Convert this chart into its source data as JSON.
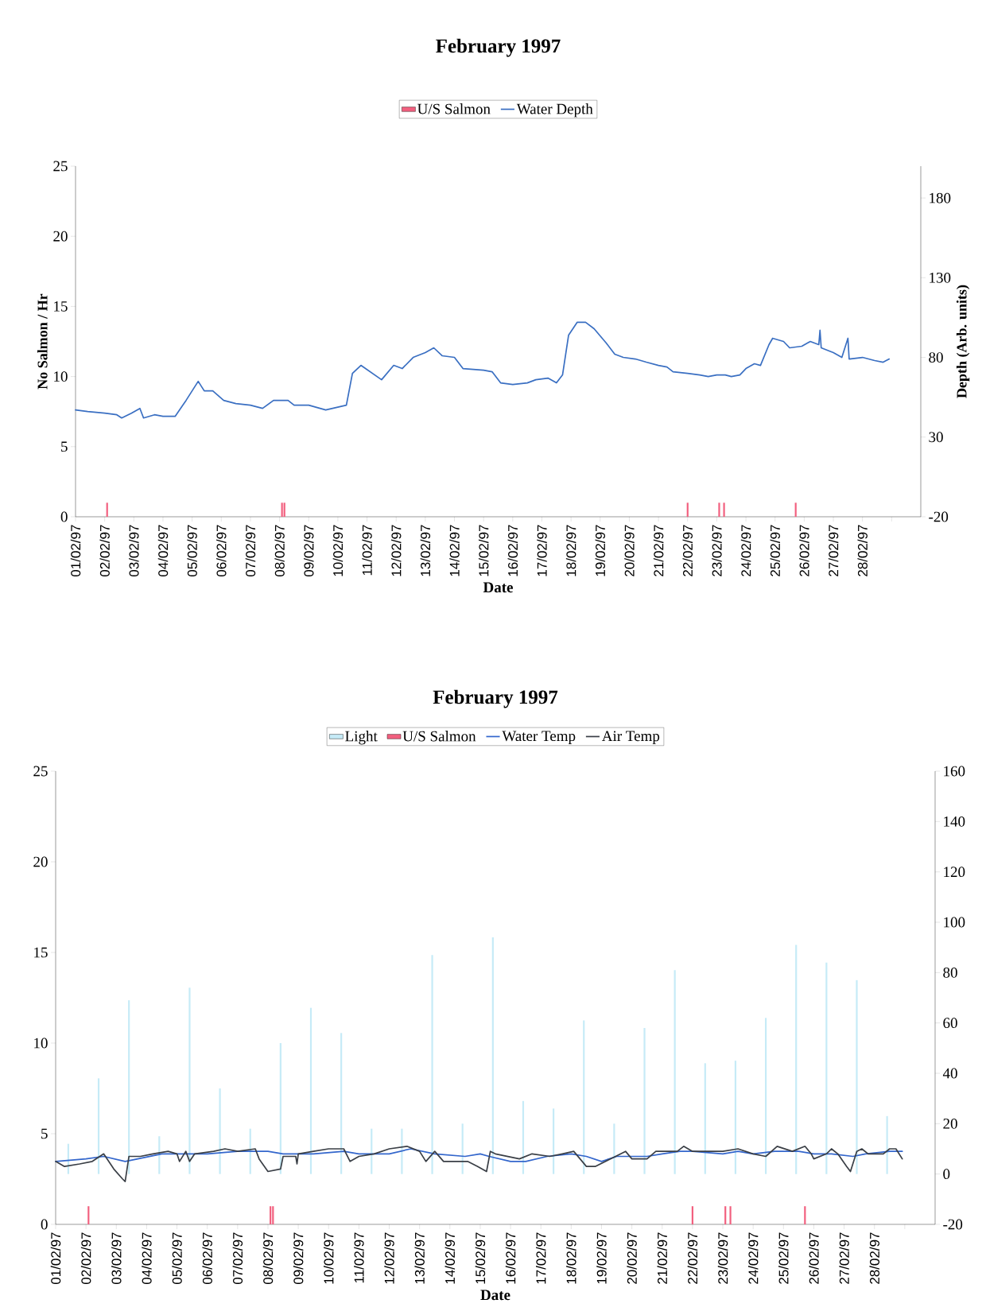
{
  "chart_data": [
    {
      "type": "line",
      "title": "February 1997",
      "xlabel": "Date",
      "ylabel": "No Salmon / Hr",
      "y2label": "Depth (Arb. units)",
      "legend": "top",
      "xlim": [
        "1997-02-01",
        "1997-03-02"
      ],
      "xticks": [
        {
          "value": "1997-02-01",
          "label": "01/02/97"
        },
        {
          "value": "1997-02-02",
          "label": "02/02/97"
        },
        {
          "value": "1997-02-03",
          "label": "03/02/97"
        },
        {
          "value": "1997-02-04",
          "label": "04/02/97"
        },
        {
          "value": "1997-02-05",
          "label": "05/02/97"
        },
        {
          "value": "1997-02-06",
          "label": "06/02/97"
        },
        {
          "value": "1997-02-07",
          "label": "07/02/97"
        },
        {
          "value": "1997-02-08",
          "label": "08/02/97"
        },
        {
          "value": "1997-02-09",
          "label": "09/02/97"
        },
        {
          "value": "1997-02-10",
          "label": "10/02/97"
        },
        {
          "value": "1997-02-11",
          "label": "11/02/97"
        },
        {
          "value": "1997-02-12",
          "label": "12/02/97"
        },
        {
          "value": "1997-02-13",
          "label": "13/02/97"
        },
        {
          "value": "1997-02-14",
          "label": "14/02/97"
        },
        {
          "value": "1997-02-15",
          "label": "15/02/97"
        },
        {
          "value": "1997-02-16",
          "label": "16/02/97"
        },
        {
          "value": "1997-02-17",
          "label": "17/02/97"
        },
        {
          "value": "1997-02-18",
          "label": "18/02/97"
        },
        {
          "value": "1997-02-19",
          "label": "19/02/97"
        },
        {
          "value": "1997-02-20",
          "label": "20/02/97"
        },
        {
          "value": "1997-02-21",
          "label": "21/02/97"
        },
        {
          "value": "1997-02-22",
          "label": "22/02/97"
        },
        {
          "value": "1997-02-23",
          "label": "23/02/97"
        },
        {
          "value": "1997-02-24",
          "label": "24/02/97"
        },
        {
          "value": "1997-02-25",
          "label": "25/02/97"
        },
        {
          "value": "1997-02-26",
          "label": "26/02/97"
        },
        {
          "value": "1997-02-27",
          "label": "27/02/97"
        },
        {
          "value": "1997-02-28",
          "label": "28/02/97"
        },
        {
          "value": "1997-03-01",
          "label": null
        }
      ],
      "ylim": [
        0,
        25
      ],
      "yticks": [
        0,
        5,
        10,
        15,
        20,
        25
      ],
      "y2lim": [
        -20,
        200
      ],
      "y2ticks": [
        -20,
        30,
        80,
        130,
        180
      ],
      "series": [
        {
          "name": "U/S Salmon",
          "type": "bar",
          "color": "#f2607f",
          "x": [
            "1997-02-02T02:00",
            "1997-02-08T02:00",
            "1997-02-08T04:00",
            "1997-02-22T00:00",
            "1997-02-23T02:00",
            "1997-02-23T06:00",
            "1997-02-25T17:00"
          ],
          "values": [
            1,
            1,
            1,
            1,
            1,
            1,
            1
          ]
        },
        {
          "name": "Water Depth",
          "axis": "y2",
          "color": "#3a6fc2",
          "x": [
            "1997-02-01T00:00",
            "1997-02-01T10:00",
            "1997-02-02T00:00",
            "1997-02-02T10:00",
            "1997-02-02T14:00",
            "1997-02-02T22:00",
            "1997-02-03T05:00",
            "1997-02-03T08:00",
            "1997-02-03T17:00",
            "1997-02-04T00:00",
            "1997-02-04T10:00",
            "1997-02-04T19:00",
            "1997-02-05T05:00",
            "1997-02-05T10:00",
            "1997-02-05T17:00",
            "1997-02-06T02:00",
            "1997-02-06T12:00",
            "1997-02-07T00:00",
            "1997-02-07T10:00",
            "1997-02-07T19:00",
            "1997-02-08T07:00",
            "1997-02-08T12:00",
            "1997-02-09T00:00",
            "1997-02-09T14:00",
            "1997-02-10T07:00",
            "1997-02-10T12:00",
            "1997-02-10T19:00",
            "1997-02-11T12:00",
            "1997-02-11T22:00",
            "1997-02-12T05:00",
            "1997-02-12T14:00",
            "1997-02-13T00:00",
            "1997-02-13T07:00",
            "1997-02-13T14:00",
            "1997-02-14T00:00",
            "1997-02-14T07:00",
            "1997-02-15T00:00",
            "1997-02-15T07:00",
            "1997-02-15T14:00",
            "1997-02-16T00:00",
            "1997-02-16T12:00",
            "1997-02-16T19:00",
            "1997-02-17T05:00",
            "1997-02-17T12:00",
            "1997-02-17T17:00",
            "1997-02-17T22:00",
            "1997-02-18T05:00",
            "1997-02-18T12:00",
            "1997-02-18T19:00",
            "1997-02-19T05:00",
            "1997-02-19T12:00",
            "1997-02-19T19:00",
            "1997-02-20T05:00",
            "1997-02-20T14:00",
            "1997-02-21T00:00",
            "1997-02-21T07:00",
            "1997-02-21T12:00",
            "1997-02-22T00:00",
            "1997-02-22T10:00",
            "1997-02-22T17:00",
            "1997-02-23T00:00",
            "1997-02-23T07:00",
            "1997-02-23T12:00",
            "1997-02-23T19:00",
            "1997-02-24T00:00",
            "1997-02-24T07:00",
            "1997-02-24T12:00",
            "1997-02-24T19:00",
            "1997-02-24T22:00",
            "1997-02-25T07:00",
            "1997-02-25T12:00",
            "1997-02-25T22:00",
            "1997-02-26T05:00",
            "1997-02-26T12:00",
            "1997-02-26T13:00",
            "1997-02-26T14:00",
            "1997-02-27T00:00",
            "1997-02-27T07:00",
            "1997-02-27T12:00",
            "1997-02-27T13:00",
            "1997-02-28T00:00",
            "1997-02-28T10:00",
            "1997-02-28T17:00",
            "1997-02-28T22:00"
          ],
          "values": [
            47,
            46,
            45,
            44,
            42,
            45,
            48,
            42,
            44,
            43,
            43,
            53,
            65,
            59,
            59,
            53,
            51,
            50,
            48,
            53,
            53,
            50,
            50,
            47,
            50,
            70,
            75,
            66,
            75,
            73,
            80,
            83,
            86,
            81,
            80,
            73,
            72,
            71,
            64,
            63,
            64,
            66,
            67,
            64,
            69,
            94,
            102,
            102,
            98,
            89,
            82,
            80,
            79,
            77,
            75,
            74,
            71,
            70,
            69,
            68,
            69,
            69,
            68,
            69,
            73,
            76,
            75,
            88,
            92,
            90,
            86,
            87,
            90,
            88,
            97,
            86,
            83,
            80,
            92,
            79,
            80,
            78,
            77,
            79
          ]
        }
      ]
    },
    {
      "type": "line",
      "title": "February 1997",
      "xlabel": "Date",
      "legend": "top",
      "xlim": [
        "1997-02-01",
        "1997-03-02"
      ],
      "xticks": [
        {
          "value": "1997-02-01",
          "label": "01/02/97"
        },
        {
          "value": "1997-02-02",
          "label": "02/02/97"
        },
        {
          "value": "1997-02-03",
          "label": "03/02/97"
        },
        {
          "value": "1997-02-04",
          "label": "04/02/97"
        },
        {
          "value": "1997-02-05",
          "label": "05/02/97"
        },
        {
          "value": "1997-02-06",
          "label": "06/02/97"
        },
        {
          "value": "1997-02-07",
          "label": "07/02/97"
        },
        {
          "value": "1997-02-08",
          "label": "08/02/97"
        },
        {
          "value": "1997-02-09",
          "label": "09/02/97"
        },
        {
          "value": "1997-02-10",
          "label": "10/02/97"
        },
        {
          "value": "1997-02-11",
          "label": "11/02/97"
        },
        {
          "value": "1997-02-12",
          "label": "12/02/97"
        },
        {
          "value": "1997-02-13",
          "label": "13/02/97"
        },
        {
          "value": "1997-02-14",
          "label": "14/02/97"
        },
        {
          "value": "1997-02-15",
          "label": "15/02/97"
        },
        {
          "value": "1997-02-16",
          "label": "16/02/97"
        },
        {
          "value": "1997-02-17",
          "label": "17/02/97"
        },
        {
          "value": "1997-02-18",
          "label": "18/02/97"
        },
        {
          "value": "1997-02-19",
          "label": "19/02/97"
        },
        {
          "value": "1997-02-20",
          "label": "20/02/97"
        },
        {
          "value": "1997-02-21",
          "label": "21/02/97"
        },
        {
          "value": "1997-02-22",
          "label": "22/02/97"
        },
        {
          "value": "1997-02-23",
          "label": "23/02/97"
        },
        {
          "value": "1997-02-24",
          "label": "24/02/97"
        },
        {
          "value": "1997-02-25",
          "label": "25/02/97"
        },
        {
          "value": "1997-02-26",
          "label": "26/02/97"
        },
        {
          "value": "1997-02-27",
          "label": "27/02/97"
        },
        {
          "value": "1997-02-28",
          "label": "28/02/97"
        },
        {
          "value": "1997-03-01",
          "label": null
        }
      ],
      "ylim": [
        0,
        25
      ],
      "yticks": [
        0,
        5,
        10,
        15,
        20,
        25
      ],
      "y2lim": [
        -20,
        160
      ],
      "y2ticks": [
        -20,
        0,
        20,
        40,
        60,
        80,
        100,
        120,
        140,
        160
      ],
      "series": [
        {
          "name": "Light",
          "type": "bar",
          "axis": "y2",
          "color": "#c6ebf7",
          "x": [
            "1997-02-01T10:00",
            "1997-02-02T10:00",
            "1997-02-03T10:00",
            "1997-02-04T10:00",
            "1997-02-05T10:00",
            "1997-02-06T10:00",
            "1997-02-07T10:00",
            "1997-02-08T10:00",
            "1997-02-09T10:00",
            "1997-02-10T10:00",
            "1997-02-11T10:00",
            "1997-02-12T10:00",
            "1997-02-13T10:00",
            "1997-02-14T10:00",
            "1997-02-15T10:00",
            "1997-02-16T10:00",
            "1997-02-17T10:00",
            "1997-02-18T10:00",
            "1997-02-19T10:00",
            "1997-02-20T10:00",
            "1997-02-21T10:00",
            "1997-02-22T10:00",
            "1997-02-23T10:00",
            "1997-02-24T10:00",
            "1997-02-25T10:00",
            "1997-02-26T10:00",
            "1997-02-27T10:00",
            "1997-02-28T10:00"
          ],
          "values": [
            12,
            38,
            69,
            15,
            74,
            34,
            18,
            52,
            66,
            56,
            18,
            18,
            87,
            20,
            94,
            29,
            26,
            61,
            20,
            58,
            81,
            44,
            45,
            62,
            91,
            84,
            77,
            23
          ]
        },
        {
          "name": "U/S Salmon",
          "type": "bar",
          "color": "#f2607f",
          "x": [
            "1997-02-02T02:00",
            "1997-02-08T02:00",
            "1997-02-08T04:00",
            "1997-02-22T00:00",
            "1997-02-23T02:00",
            "1997-02-23T06:00",
            "1997-02-25T17:00"
          ],
          "values": [
            1,
            1,
            1,
            1,
            1,
            1,
            1
          ]
        },
        {
          "name": "Water Temp",
          "axis": "y2",
          "color": "#3366cc",
          "x": [
            "1997-02-01T00:00",
            "1997-02-02T00:00",
            "1997-02-02T14:00",
            "1997-02-03T07:00",
            "1997-02-03T17:00",
            "1997-02-04T12:00",
            "1997-02-05T00:00",
            "1997-02-06T00:00",
            "1997-02-07T00:00",
            "1997-02-08T00:00",
            "1997-02-08T12:00",
            "1997-02-09T12:00",
            "1997-02-10T12:00",
            "1997-02-11T00:00",
            "1997-02-12T00:00",
            "1997-02-12T17:00",
            "1997-02-13T12:00",
            "1997-02-14T12:00",
            "1997-02-15T00:00",
            "1997-02-15T07:00",
            "1997-02-16T00:00",
            "1997-02-16T12:00",
            "1997-02-17T05:00",
            "1997-02-18T00:00",
            "1997-02-18T12:00",
            "1997-02-19T00:00",
            "1997-02-19T12:00",
            "1997-02-20T00:00",
            "1997-02-20T12:00",
            "1997-02-21T00:00",
            "1997-02-21T14:00",
            "1997-02-22T00:00",
            "1997-02-23T00:00",
            "1997-02-23T12:00",
            "1997-02-24T00:00",
            "1997-02-24T17:00",
            "1997-02-25T12:00",
            "1997-02-26T00:00",
            "1997-02-26T14:00",
            "1997-02-27T07:00",
            "1997-02-27T17:00",
            "1997-02-28T12:00",
            "1997-02-28T22:00"
          ],
          "values": [
            5,
            6,
            7,
            5,
            6,
            8,
            8,
            8,
            9,
            9,
            8,
            8,
            9,
            8,
            8,
            10,
            8,
            7,
            8,
            7,
            5,
            5,
            7,
            8,
            7,
            5,
            7,
            7,
            7,
            8,
            9,
            9,
            8,
            9,
            8,
            9,
            9,
            8,
            8,
            7,
            8,
            9,
            9
          ]
        },
        {
          "name": "Air Temp",
          "axis": "y2",
          "color": "#3a3f46",
          "x": [
            "1997-02-01T00:00",
            "1997-02-01T07:00",
            "1997-02-01T19:00",
            "1997-02-02T05:00",
            "1997-02-02T14:00",
            "1997-02-02T22:00",
            "1997-02-03T05:00",
            "1997-02-03T07:00",
            "1997-02-03T10:00",
            "1997-02-03T19:00",
            "1997-02-04T05:00",
            "1997-02-04T17:00",
            "1997-02-05T00:00",
            "1997-02-05T02:00",
            "1997-02-05T07:00",
            "1997-02-05T10:00",
            "1997-02-05T14:00",
            "1997-02-06T05:00",
            "1997-02-06T14:00",
            "1997-02-07T00:00",
            "1997-02-07T14:00",
            "1997-02-07T17:00",
            "1997-02-08T00:00",
            "1997-02-08T10:00",
            "1997-02-08T12:00",
            "1997-02-08T22:00",
            "1997-02-08T23:00",
            "1997-02-09T00:00",
            "1997-02-09T12:00",
            "1997-02-10T00:00",
            "1997-02-10T12:00",
            "1997-02-10T17:00",
            "1997-02-11T00:00",
            "1997-02-11T12:00",
            "1997-02-12T00:00",
            "1997-02-12T14:00",
            "1997-02-13T00:00",
            "1997-02-13T05:00",
            "1997-02-13T12:00",
            "1997-02-13T19:00",
            "1997-02-14T05:00",
            "1997-02-14T14:00",
            "1997-02-14T22:00",
            "1997-02-15T05:00",
            "1997-02-15T08:00",
            "1997-02-15T12:00",
            "1997-02-16T07:00",
            "1997-02-16T17:00",
            "1997-02-17T07:00",
            "1997-02-17T17:00",
            "1997-02-18T02:00",
            "1997-02-18T07:00",
            "1997-02-18T12:00",
            "1997-02-18T19:00",
            "1997-02-19T07:00",
            "1997-02-19T19:00",
            "1997-02-20T00:00",
            "1997-02-20T12:00",
            "1997-02-20T19:00",
            "1997-02-21T12:00",
            "1997-02-21T17:00",
            "1997-02-22T00:00",
            "1997-02-22T14:00",
            "1997-02-23T00:00",
            "1997-02-23T12:00",
            "1997-02-24T00:00",
            "1997-02-24T10:00",
            "1997-02-24T19:00",
            "1997-02-25T07:00",
            "1997-02-25T17:00",
            "1997-02-25T22:00",
            "1997-02-26T00:00",
            "1997-02-26T10:00",
            "1997-02-26T14:00",
            "1997-02-26T19:00",
            "1997-02-27T02:00",
            "1997-02-27T05:00",
            "1997-02-27T10:00",
            "1997-02-27T14:00",
            "1997-02-27T19:00",
            "1997-02-28T07:00",
            "1997-02-28T12:00",
            "1997-02-28T17:00",
            "1997-02-28T22:00"
          ],
          "values": [
            5,
            3,
            4,
            5,
            8,
            2,
            -2,
            -3,
            7,
            7,
            8,
            9,
            8,
            5,
            9,
            5,
            8,
            9,
            10,
            9,
            10,
            6,
            1,
            2,
            7,
            7,
            4,
            8,
            9,
            10,
            10,
            5,
            7,
            8,
            10,
            11,
            9,
            5,
            9,
            5,
            5,
            5,
            3,
            1,
            9,
            8,
            6,
            8,
            7,
            8,
            9,
            6,
            3,
            3,
            6,
            9,
            6,
            6,
            9,
            9,
            11,
            9,
            9,
            9,
            10,
            8,
            7,
            11,
            9,
            11,
            8,
            6,
            8,
            10,
            8,
            3,
            1,
            9,
            10,
            8,
            8,
            10,
            10,
            6
          ]
        }
      ]
    }
  ]
}
